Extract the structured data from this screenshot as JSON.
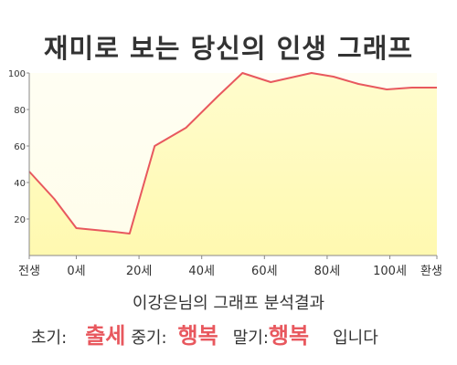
{
  "header": {
    "title": "재미로 보는 당신의 인생 그래프"
  },
  "chart_data": {
    "type": "area",
    "title": "재미로 보는 당신의 인생 그래프",
    "x_tick_labels": [
      "전생",
      "0세",
      "20세",
      "40세",
      "60세",
      "80세",
      "100세",
      "환생"
    ],
    "x_ticks": [
      "-15",
      "0",
      "20",
      "40",
      "60",
      "80",
      "100",
      "115"
    ],
    "y_ticks": [
      "20",
      "40",
      "60",
      "80",
      "100"
    ],
    "ylim": [
      0,
      100
    ],
    "grid": false,
    "series": [
      {
        "x": [
          -15,
          -7,
          0,
          6,
          12,
          17,
          25,
          35,
          45,
          53,
          62,
          75,
          82,
          90,
          99,
          107,
          115
        ],
        "values": [
          46,
          31,
          15,
          14,
          13,
          12,
          60,
          70,
          87,
          100,
          95,
          100,
          98,
          94,
          91,
          92,
          92
        ]
      }
    ],
    "colors": {
      "line": "#e8585e",
      "fill": "#fffcc0",
      "fill_top": "#fffde8"
    }
  },
  "analysis": {
    "heading": "이강은님의 그래프 분석결과",
    "early_label": "초기:",
    "early_value": "출세",
    "mid_label": "중기:",
    "mid_value": "행복",
    "late_label": "말기:",
    "late_value": "행복",
    "suffix": "입니다"
  }
}
